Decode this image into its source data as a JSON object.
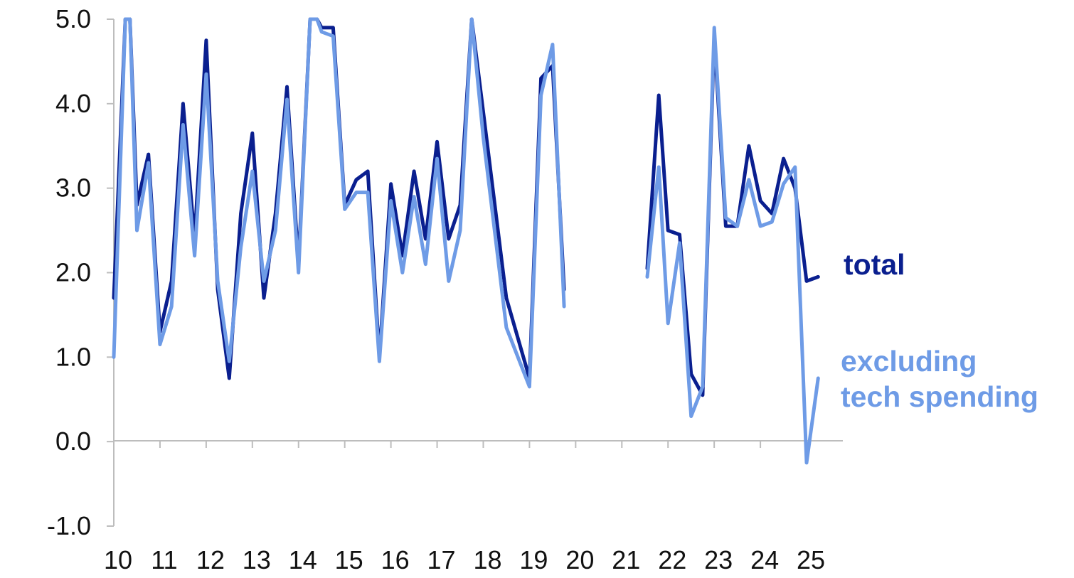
{
  "chart_data": {
    "type": "line",
    "title": "",
    "xlabel": "",
    "ylabel": "",
    "ylim": [
      -1.0,
      5.0
    ],
    "xlim": [
      10,
      25.4
    ],
    "grid": false,
    "y_ticks": [
      "5.0",
      "4.0",
      "3.0",
      "2.0",
      "1.0",
      "0.0",
      "-1.0"
    ],
    "x_ticks": [
      "10",
      "11",
      "12",
      "13",
      "14",
      "15",
      "16",
      "17",
      "18",
      "19",
      "20",
      "21",
      "22",
      "23",
      "24",
      "25"
    ],
    "series": [
      {
        "name": "total",
        "label_lines": [
          "total"
        ],
        "color": "#0a1f8f",
        "segments": [
          [
            [
              10.0,
              1.7
            ],
            [
              10.25,
              5.0
            ],
            [
              10.35,
              5.0
            ],
            [
              10.5,
              2.8
            ],
            [
              10.75,
              3.4
            ],
            [
              11.0,
              1.3
            ],
            [
              11.25,
              1.9
            ],
            [
              11.5,
              4.0
            ],
            [
              11.75,
              2.4
            ],
            [
              12.0,
              4.75
            ],
            [
              12.25,
              1.8
            ],
            [
              12.5,
              0.75
            ],
            [
              12.75,
              2.7
            ],
            [
              13.0,
              3.65
            ],
            [
              13.25,
              1.7
            ],
            [
              13.5,
              2.7
            ],
            [
              13.75,
              4.2
            ],
            [
              14.0,
              2.1
            ],
            [
              14.25,
              5.0
            ],
            [
              14.4,
              5.0
            ],
            [
              14.5,
              4.9
            ],
            [
              14.75,
              4.9
            ],
            [
              15.0,
              2.8
            ],
            [
              15.25,
              3.1
            ],
            [
              15.5,
              3.2
            ],
            [
              15.75,
              1.0
            ],
            [
              16.0,
              3.05
            ],
            [
              16.25,
              2.2
            ],
            [
              16.5,
              3.2
            ],
            [
              16.75,
              2.4
            ],
            [
              17.0,
              3.55
            ],
            [
              17.25,
              2.4
            ],
            [
              17.5,
              2.8
            ],
            [
              17.75,
              5.0
            ],
            [
              18.0,
              3.9
            ],
            [
              18.5,
              1.7
            ],
            [
              19.0,
              0.75
            ],
            [
              19.25,
              4.3
            ],
            [
              19.5,
              4.45
            ],
            [
              19.75,
              1.8
            ]
          ],
          [
            [
              21.55,
              2.05
            ],
            [
              21.8,
              4.1
            ],
            [
              22.0,
              2.5
            ],
            [
              22.25,
              2.45
            ],
            [
              22.5,
              0.8
            ],
            [
              22.75,
              0.55
            ],
            [
              23.0,
              4.8
            ],
            [
              23.25,
              2.55
            ],
            [
              23.5,
              2.55
            ],
            [
              23.75,
              3.5
            ],
            [
              24.0,
              2.85
            ],
            [
              24.25,
              2.7
            ],
            [
              24.5,
              3.35
            ],
            [
              24.75,
              3.0
            ],
            [
              25.0,
              1.9
            ],
            [
              25.25,
              1.95
            ]
          ]
        ]
      },
      {
        "name": "excluding tech spending",
        "label_lines": [
          "excluding",
          "tech spending"
        ],
        "color": "#6e9be6",
        "segments": [
          [
            [
              10.0,
              1.0
            ],
            [
              10.25,
              5.0
            ],
            [
              10.35,
              5.0
            ],
            [
              10.5,
              2.5
            ],
            [
              10.75,
              3.3
            ],
            [
              11.0,
              1.15
            ],
            [
              11.25,
              1.6
            ],
            [
              11.5,
              3.75
            ],
            [
              11.75,
              2.2
            ],
            [
              12.0,
              4.35
            ],
            [
              12.25,
              1.9
            ],
            [
              12.5,
              0.95
            ],
            [
              12.75,
              2.3
            ],
            [
              13.0,
              3.2
            ],
            [
              13.25,
              1.9
            ],
            [
              13.5,
              2.5
            ],
            [
              13.75,
              4.05
            ],
            [
              14.0,
              2.0
            ],
            [
              14.25,
              5.0
            ],
            [
              14.4,
              5.0
            ],
            [
              14.5,
              4.85
            ],
            [
              14.75,
              4.8
            ],
            [
              15.0,
              2.75
            ],
            [
              15.25,
              2.95
            ],
            [
              15.5,
              2.95
            ],
            [
              15.75,
              0.95
            ],
            [
              16.0,
              2.85
            ],
            [
              16.25,
              2.0
            ],
            [
              16.5,
              2.9
            ],
            [
              16.75,
              2.1
            ],
            [
              17.0,
              3.35
            ],
            [
              17.25,
              1.9
            ],
            [
              17.5,
              2.5
            ],
            [
              17.75,
              5.0
            ],
            [
              18.0,
              3.6
            ],
            [
              18.5,
              1.35
            ],
            [
              19.0,
              0.65
            ],
            [
              19.25,
              4.1
            ],
            [
              19.5,
              4.7
            ],
            [
              19.75,
              1.6
            ]
          ],
          [
            [
              21.55,
              1.95
            ],
            [
              21.8,
              3.25
            ],
            [
              22.0,
              1.4
            ],
            [
              22.25,
              2.35
            ],
            [
              22.5,
              0.3
            ],
            [
              22.75,
              0.65
            ],
            [
              23.0,
              4.9
            ],
            [
              23.25,
              2.65
            ],
            [
              23.5,
              2.55
            ],
            [
              23.75,
              3.1
            ],
            [
              24.0,
              2.55
            ],
            [
              24.25,
              2.6
            ],
            [
              24.5,
              3.05
            ],
            [
              24.75,
              3.25
            ],
            [
              25.0,
              -0.25
            ],
            [
              25.25,
              0.75
            ]
          ]
        ]
      }
    ]
  }
}
